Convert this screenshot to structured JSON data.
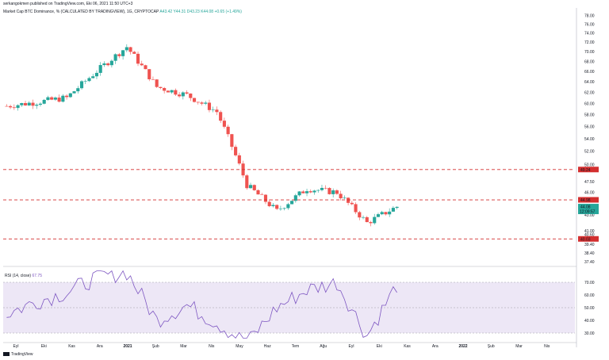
{
  "publisher": "serkangokmen published on TradingView.com, Eki 06, 2021 11:50 UTC+3",
  "symbol": {
    "title": "Market Cap BTC Dominance, %",
    "source": "(CALCULATED BY TRADINGVIEW)",
    "interval": "1G",
    "exchange": "CRYPTOCAP",
    "ohlc": "A43.42  Y44.31  D43.23  K44.08  +0.65 (+1.49%)"
  },
  "price_axis": {
    "ticks": [
      "78.00",
      "76.00",
      "74.00",
      "72.00",
      "70.00",
      "68.00",
      "66.00",
      "64.00",
      "62.00",
      "60.00",
      "58.00",
      "56.00",
      "54.00",
      "52.00",
      "50.00",
      "47.50",
      "46.00",
      "43.00",
      "41.00",
      "40.60",
      "39.40",
      "38.40",
      "37.40"
    ]
  },
  "rsi_axis": {
    "ticks": [
      "70.00",
      "60.00",
      "50.00",
      "40.00",
      "30.00"
    ]
  },
  "time_axis": {
    "ticks": [
      "Eyl",
      "Eki",
      "Kas",
      "Ara",
      "2021",
      "Şub",
      "Mar",
      "Nis",
      "May",
      "Haz",
      "Tem",
      "Ağu",
      "Eyl",
      "Eki",
      "Kas",
      "Ara",
      "2022",
      "Şub",
      "Mar",
      "Nis"
    ]
  },
  "levels": [
    {
      "value": "49.24",
      "color": "#d32f2f"
    },
    {
      "value": "44.98",
      "color": "#d32f2f"
    },
    {
      "value": "40.03",
      "color": "#d32f2f"
    }
  ],
  "last_price": {
    "value": "44.08",
    "countdown": "12:09:57",
    "color": "#26a69a"
  },
  "rsi": {
    "label": "RSI (14, close)",
    "value": "67.75"
  },
  "watermark": "TradingView",
  "colors": {
    "up": "#26a69a",
    "down": "#ef5350",
    "rsi_line": "#7e57c2",
    "rsi_band": "#ede7f6"
  },
  "chart_data": [
    {
      "type": "candlestick",
      "title": "Market Cap BTC Dominance, %",
      "x": [
        "Eyl",
        "Eki",
        "Kas",
        "Ara",
        "2021",
        "Şub",
        "Mar",
        "Nis",
        "May",
        "Haz",
        "Tem",
        "Ağu",
        "Eyl",
        "Eki"
      ],
      "y": [
        59.5,
        60.2,
        61.0,
        66.0,
        71.0,
        63.0,
        61.5,
        58.5,
        47.0,
        43.5,
        46.5,
        46.0,
        42.0,
        44.08
      ],
      "ylim": [
        37.4,
        79.0
      ],
      "log_scale": true,
      "horizontal_levels": [
        49.24,
        44.98,
        40.03
      ]
    },
    {
      "type": "line",
      "title": "RSI (14, close)",
      "x": [
        "Eyl",
        "Eki",
        "Kas",
        "Ara",
        "2021",
        "Şub",
        "Mar",
        "Nis",
        "May",
        "Haz",
        "Tem",
        "Ağu",
        "Eyl",
        "Eki"
      ],
      "y": [
        45,
        55,
        62,
        74,
        78,
        40,
        52,
        38,
        22,
        50,
        64,
        70,
        28,
        67.75
      ],
      "ylim": [
        25,
        80
      ],
      "bands": [
        30,
        50,
        70
      ]
    }
  ]
}
